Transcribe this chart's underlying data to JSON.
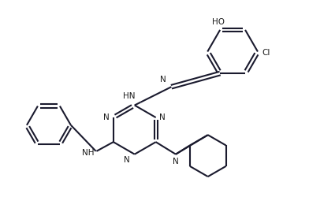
{
  "bg_color": "#ffffff",
  "line_color": "#1a1a2e",
  "text_color": "#1a1a1a",
  "line_width": 1.5,
  "font_size": 7.5,
  "figsize": [
    3.92,
    2.69
  ],
  "dpi": 100,
  "xlim": [
    0,
    10
  ],
  "ylim": [
    0,
    6.85
  ]
}
